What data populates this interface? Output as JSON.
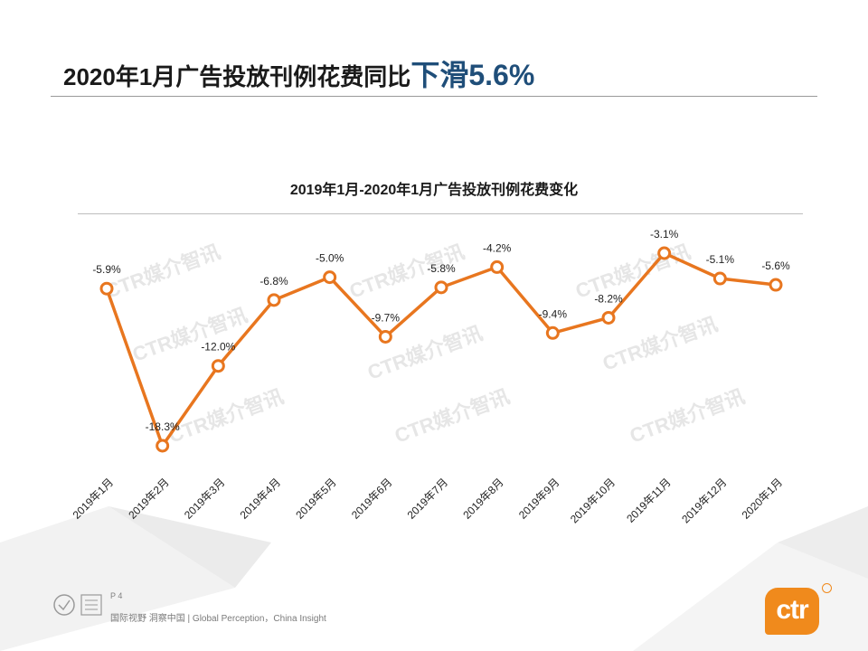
{
  "slide": {
    "title_prefix": "2020年1月广告投放刊例花费同比",
    "title_highlight": "下滑",
    "title_value": "5.6%",
    "page_number": "P 4",
    "tagline": "国际视野 洞察中国 | Global Perception，China Insight",
    "brand": "ctr",
    "watermark": "CTR媒介智讯"
  },
  "colors": {
    "series": "#e8761f",
    "highlight": "#1f4e79",
    "brand": "#f08a1c"
  },
  "chart_data": {
    "type": "line",
    "title": "2019年1月-2020年1月广告投放刊例花费变化",
    "categories": [
      "2019年1月",
      "2019年2月",
      "2019年3月",
      "2019年4月",
      "2019年5月",
      "2019年6月",
      "2019年7月",
      "2019年8月",
      "2019年9月",
      "2019年10月",
      "2019年11月",
      "2019年12月",
      "2020年1月"
    ],
    "values": [
      -5.9,
      -18.3,
      -12.0,
      -6.8,
      -5.0,
      -9.7,
      -5.8,
      -4.2,
      -9.4,
      -8.2,
      -3.1,
      -5.1,
      -5.6
    ],
    "data_labels": [
      "-5.9%",
      "-18.3%",
      "-12.0%",
      "-6.8%",
      "-5.0%",
      "-9.7%",
      "-5.8%",
      "-4.2%",
      "-9.4%",
      "-8.2%",
      "-3.1%",
      "-5.1%",
      "-5.6%"
    ],
    "ylim": [
      -18.3,
      -3.1
    ],
    "grid": false,
    "legend": "none"
  }
}
